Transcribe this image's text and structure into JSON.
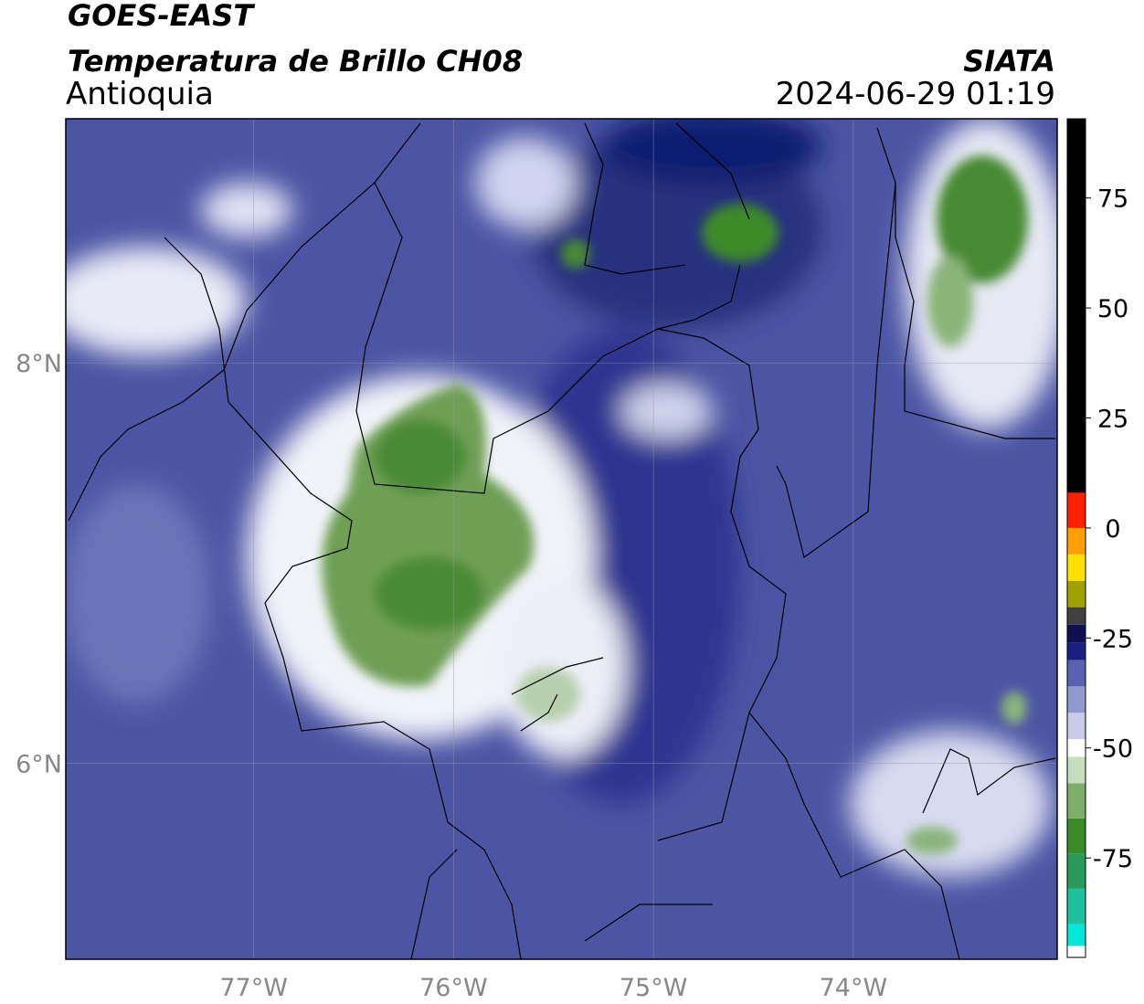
{
  "header": {
    "satellite": "GOES-EAST",
    "product": "Temperatura de Brillo CH08",
    "region": "Antioquia",
    "source": "SIATA",
    "datetime": "2024-06-29 01:19"
  },
  "map": {
    "xlim": [
      -77.94,
      -72.98
    ],
    "ylim": [
      5.02,
      9.22
    ],
    "xticks": [
      {
        "value": -77,
        "label": "77°W"
      },
      {
        "value": -76,
        "label": "76°W"
      },
      {
        "value": -75,
        "label": "75°W"
      },
      {
        "value": -74,
        "label": "74°W"
      }
    ],
    "yticks": [
      {
        "value": 8,
        "label": "8°N"
      },
      {
        "value": 6,
        "label": "6°N"
      }
    ]
  },
  "colorbar": {
    "lim": [
      -97.6,
      93
    ],
    "ticks": [
      -75,
      -50,
      -25,
      0,
      25,
      50,
      75
    ],
    "segments": [
      {
        "from": -97.6,
        "to": -95,
        "color": "#ffffff"
      },
      {
        "from": -95,
        "to": -90,
        "color": "#00e5d8"
      },
      {
        "from": -90,
        "to": -82,
        "color": "#1fbfa0"
      },
      {
        "from": -82,
        "to": -74,
        "color": "#2a9a5a"
      },
      {
        "from": -74,
        "to": -66,
        "color": "#3a8a2a"
      },
      {
        "from": -66,
        "to": -58,
        "color": "#7fae6a"
      },
      {
        "from": -58,
        "to": -52,
        "color": "#c8dcc0"
      },
      {
        "from": -52,
        "to": -48,
        "color": "#ffffff"
      },
      {
        "from": -48,
        "to": -42,
        "color": "#c8cce6"
      },
      {
        "from": -42,
        "to": -36,
        "color": "#9198cc"
      },
      {
        "from": -36,
        "to": -30,
        "color": "#5a62b0"
      },
      {
        "from": -30,
        "to": -26,
        "color": "#1a1e80"
      },
      {
        "from": -26,
        "to": -22,
        "color": "#101050"
      },
      {
        "from": -22,
        "to": -18,
        "color": "#404040"
      },
      {
        "from": -18,
        "to": -12,
        "color": "#a0a000"
      },
      {
        "from": -12,
        "to": -6,
        "color": "#ffe000"
      },
      {
        "from": -6,
        "to": 0,
        "color": "#ffa000"
      },
      {
        "from": 0,
        "to": 8,
        "color": "#ff2000"
      },
      {
        "from": 8,
        "to": 93,
        "color": "#000000"
      }
    ]
  }
}
